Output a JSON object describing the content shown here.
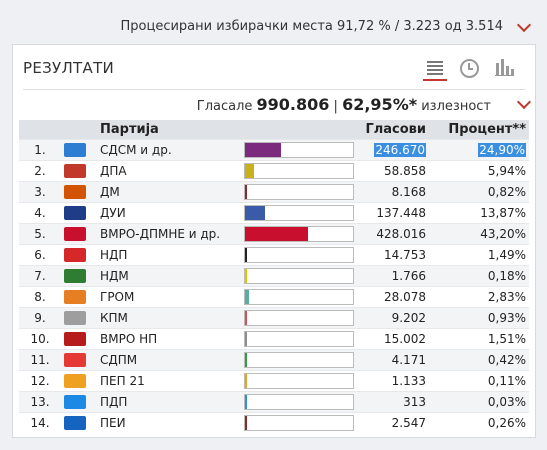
{
  "header": {
    "processed_text": "Процесирани избирачки места 91,72 % / 3.223 од 3.514"
  },
  "panel": {
    "title": "РЕЗУЛТАТИ",
    "view_icons": [
      "list-view-icon",
      "clock-view-icon",
      "bar-chart-view-icon"
    ],
    "turnout": {
      "votes_label": "Гласале",
      "votes": "990.806",
      "separator": "|",
      "percent": "62,95%",
      "asterisk": "*",
      "turnout_label": "излезност"
    }
  },
  "table": {
    "headers": {
      "rank": "",
      "logo": "",
      "party": "Партија",
      "bar": "",
      "votes": "Гласови",
      "percent": "Процент**"
    },
    "rows": [
      {
        "rank": "1.",
        "party": "СДСМ и др.",
        "votes": "246.670",
        "percent": "24,90%",
        "share": 24.9,
        "color": "#7b2a7e",
        "logo_color": "#2d7dd2",
        "selected": true
      },
      {
        "rank": "2.",
        "party": "ДПА",
        "votes": "58.858",
        "percent": "5,94%",
        "share": 5.94,
        "color": "#c9b11c",
        "logo_color": "#c0392b"
      },
      {
        "rank": "3.",
        "party": "ДМ",
        "votes": "8.168",
        "percent": "0,82%",
        "share": 0.82,
        "color": "#8a2a2a",
        "logo_color": "#d35400"
      },
      {
        "rank": "4.",
        "party": "ДУИ",
        "votes": "137.448",
        "percent": "13,87%",
        "share": 13.87,
        "color": "#3a5ca8",
        "logo_color": "#1f3c88"
      },
      {
        "rank": "5.",
        "party": "ВМРО-ДПМНЕ и др.",
        "votes": "428.016",
        "percent": "43,20%",
        "share": 43.2,
        "color": "#c8102e",
        "logo_color": "#c8102e"
      },
      {
        "rank": "6.",
        "party": "НДП",
        "votes": "14.753",
        "percent": "1,49%",
        "share": 1.49,
        "color": "#222222",
        "logo_color": "#d62828"
      },
      {
        "rank": "7.",
        "party": "НДМ",
        "votes": "1.766",
        "percent": "0,18%",
        "share": 0.18,
        "color": "#e6c200",
        "logo_color": "#2e7d32"
      },
      {
        "rank": "8.",
        "party": "ГРОМ",
        "votes": "28.078",
        "percent": "2,83%",
        "share": 2.83,
        "color": "#5aaea0",
        "logo_color": "#e67e22"
      },
      {
        "rank": "9.",
        "party": "КПМ",
        "votes": "9.202",
        "percent": "0,93%",
        "share": 0.93,
        "color": "#d94c5a",
        "logo_color": "#9e9e9e"
      },
      {
        "rank": "10.",
        "party": "ВМРО НП",
        "votes": "15.002",
        "percent": "1,51%",
        "share": 1.51,
        "color": "#8c8c8c",
        "logo_color": "#b71c1c"
      },
      {
        "rank": "11.",
        "party": "СДПМ",
        "votes": "4.171",
        "percent": "0,42%",
        "share": 0.42,
        "color": "#2e9e48",
        "logo_color": "#e53935"
      },
      {
        "rank": "12.",
        "party": "ПЕП 21",
        "votes": "1.133",
        "percent": "0,11%",
        "share": 0.11,
        "color": "#f0a020",
        "logo_color": "#f0a020"
      },
      {
        "rank": "13.",
        "party": "ПДП",
        "votes": "313",
        "percent": "0,03%",
        "share": 0.03,
        "color": "#2f8fd8",
        "logo_color": "#1e88e5"
      },
      {
        "rank": "14.",
        "party": "ПЕИ",
        "votes": "2.547",
        "percent": "0,26%",
        "share": 0.26,
        "color": "#8a2a2a",
        "logo_color": "#1565c0"
      }
    ]
  }
}
